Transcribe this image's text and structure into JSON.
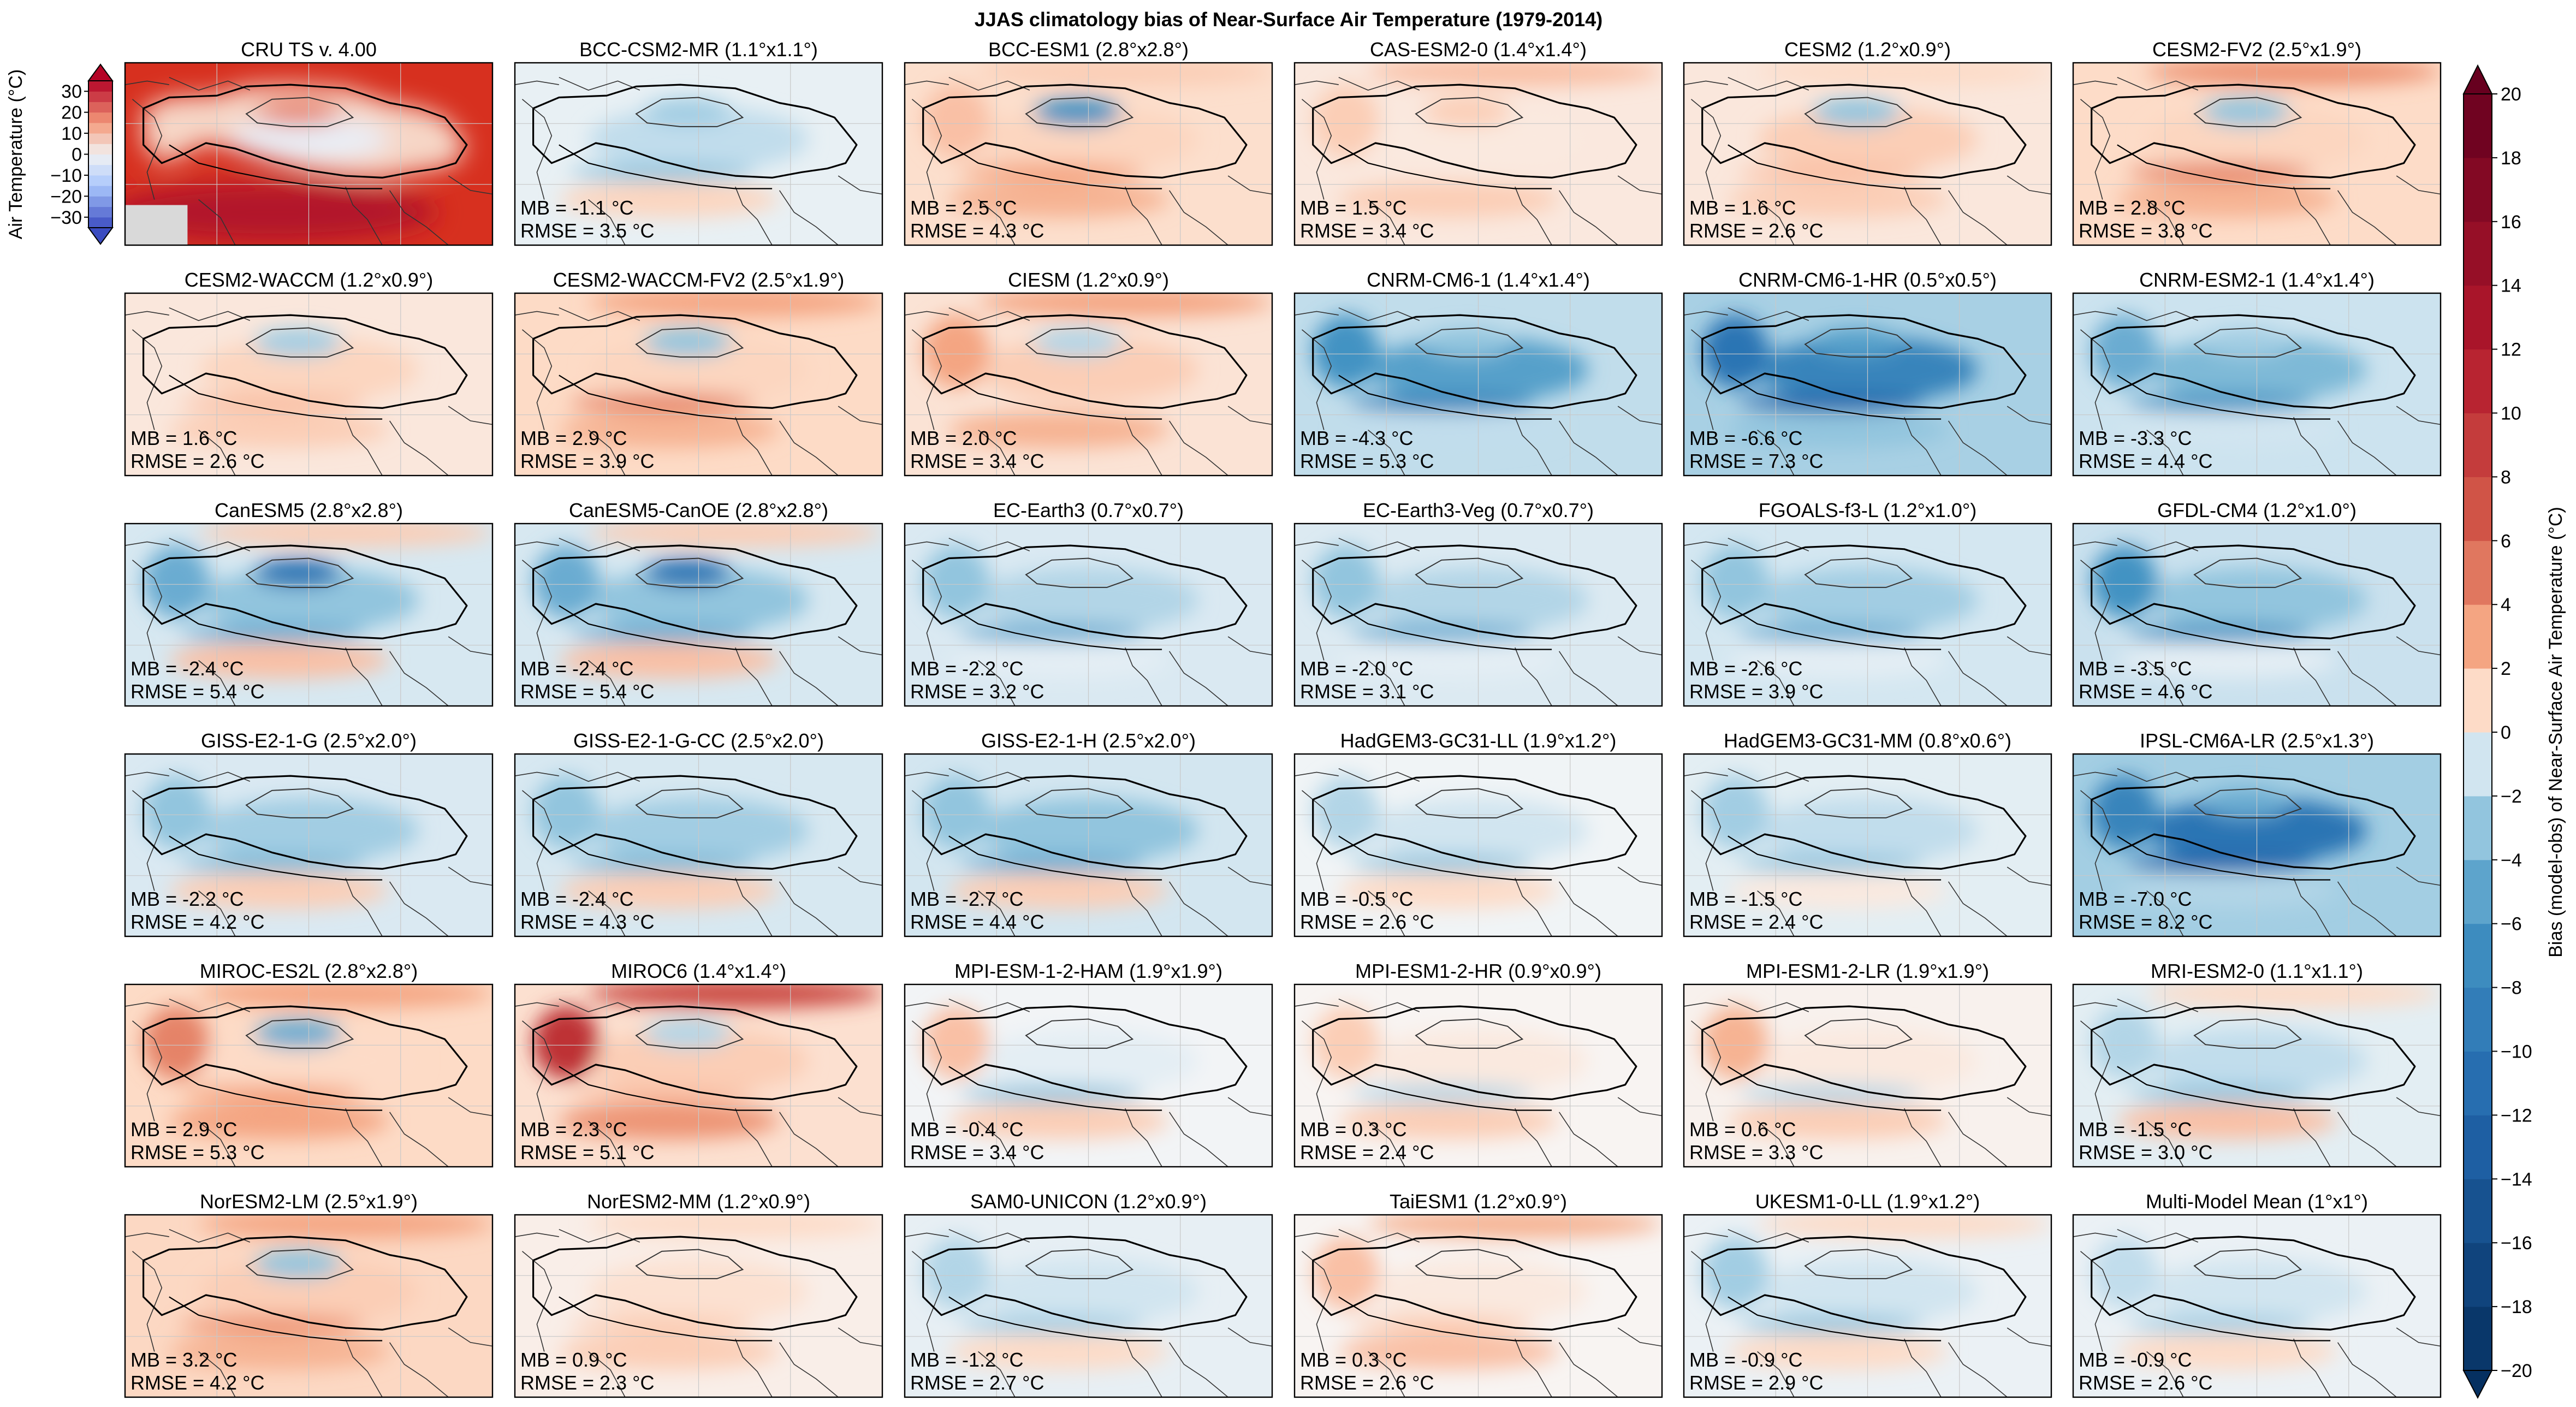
{
  "chart_data": {
    "type": "heatmap",
    "title": "JJAS climatology bias of Near-Surface Air Temperature (1979-2014)",
    "panel_columns": 6,
    "colors": {
      "warm_strong": "#b2182b",
      "warm_mid": "#ef8a62",
      "warm_light": "#fddbc7",
      "neutral": "#f7f7f7",
      "cool_light": "#d1e5f0",
      "cool_mid": "#67a9cf",
      "cool_strong": "#2166ac",
      "border": "#000000",
      "grid": "#c8c8c8",
      "no_data": "#d9d9d9"
    },
    "reference_colorbar": {
      "label": "Air Temperature (°C)",
      "ticks": [
        "30",
        "20",
        "10",
        "0",
        "−10",
        "−20",
        "−30"
      ],
      "range": [
        -35,
        35
      ]
    },
    "bias_colorbar": {
      "label": "Bias (model-obs) of Near-Surface Air Temperature (°C)",
      "ticks": [
        "20",
        "18",
        "16",
        "14",
        "12",
        "10",
        "8",
        "6",
        "4",
        "2",
        "0",
        "−2",
        "−4",
        "−6",
        "−8",
        "−10",
        "−12",
        "−14",
        "−16",
        "−18",
        "−20"
      ],
      "range": [
        -20,
        20
      ]
    },
    "panels": [
      {
        "title": "CRU TS v. 4.00",
        "reference": true
      },
      {
        "title": "BCC-CSM2-MR (1.1°x1.1°)",
        "mb": -1.1,
        "rmse": 3.5,
        "mb_label": "MB = -1.1 °C",
        "rmse_label": "RMSE = 3.5 °C"
      },
      {
        "title": "BCC-ESM1 (2.8°x2.8°)",
        "mb": 2.5,
        "rmse": 4.3,
        "mb_label": "MB = 2.5 °C",
        "rmse_label": "RMSE = 4.3 °C"
      },
      {
        "title": "CAS-ESM2-0 (1.4°x1.4°)",
        "mb": 1.5,
        "rmse": 3.4,
        "mb_label": "MB = 1.5 °C",
        "rmse_label": "RMSE = 3.4 °C"
      },
      {
        "title": "CESM2 (1.2°x0.9°)",
        "mb": 1.6,
        "rmse": 2.6,
        "mb_label": "MB = 1.6 °C",
        "rmse_label": "RMSE = 2.6 °C"
      },
      {
        "title": "CESM2-FV2 (2.5°x1.9°)",
        "mb": 2.8,
        "rmse": 3.8,
        "mb_label": "MB = 2.8 °C",
        "rmse_label": "RMSE = 3.8 °C"
      },
      {
        "title": "CESM2-WACCM (1.2°x0.9°)",
        "mb": 1.6,
        "rmse": 2.6,
        "mb_label": "MB = 1.6 °C",
        "rmse_label": "RMSE = 2.6 °C"
      },
      {
        "title": "CESM2-WACCM-FV2 (2.5°x1.9°)",
        "mb": 2.9,
        "rmse": 3.9,
        "mb_label": "MB = 2.9 °C",
        "rmse_label": "RMSE = 3.9 °C"
      },
      {
        "title": "CIESM (1.2°x0.9°)",
        "mb": 2.0,
        "rmse": 3.4,
        "mb_label": "MB = 2.0 °C",
        "rmse_label": "RMSE = 3.4 °C"
      },
      {
        "title": "CNRM-CM6-1 (1.4°x1.4°)",
        "mb": -4.3,
        "rmse": 5.3,
        "mb_label": "MB = -4.3 °C",
        "rmse_label": "RMSE = 5.3 °C"
      },
      {
        "title": "CNRM-CM6-1-HR (0.5°x0.5°)",
        "mb": -6.6,
        "rmse": 7.3,
        "mb_label": "MB = -6.6 °C",
        "rmse_label": "RMSE = 7.3 °C"
      },
      {
        "title": "CNRM-ESM2-1 (1.4°x1.4°)",
        "mb": -3.3,
        "rmse": 4.4,
        "mb_label": "MB = -3.3 °C",
        "rmse_label": "RMSE = 4.4 °C"
      },
      {
        "title": "CanESM5 (2.8°x2.8°)",
        "mb": -2.4,
        "rmse": 5.4,
        "mb_label": "MB = -2.4 °C",
        "rmse_label": "RMSE = 5.4 °C"
      },
      {
        "title": "CanESM5-CanOE (2.8°x2.8°)",
        "mb": -2.4,
        "rmse": 5.4,
        "mb_label": "MB = -2.4 °C",
        "rmse_label": "RMSE = 5.4 °C"
      },
      {
        "title": "EC-Earth3 (0.7°x0.7°)",
        "mb": -2.2,
        "rmse": 3.2,
        "mb_label": "MB = -2.2 °C",
        "rmse_label": "RMSE = 3.2 °C"
      },
      {
        "title": "EC-Earth3-Veg (0.7°x0.7°)",
        "mb": -2.0,
        "rmse": 3.1,
        "mb_label": "MB = -2.0 °C",
        "rmse_label": "RMSE = 3.1 °C"
      },
      {
        "title": "FGOALS-f3-L (1.2°x1.0°)",
        "mb": -2.6,
        "rmse": 3.9,
        "mb_label": "MB = -2.6 °C",
        "rmse_label": "RMSE = 3.9 °C"
      },
      {
        "title": "GFDL-CM4 (1.2°x1.0°)",
        "mb": -3.5,
        "rmse": 4.6,
        "mb_label": "MB = -3.5 °C",
        "rmse_label": "RMSE = 4.6 °C"
      },
      {
        "title": "GISS-E2-1-G (2.5°x2.0°)",
        "mb": -2.2,
        "rmse": 4.2,
        "mb_label": "MB = -2.2 °C",
        "rmse_label": "RMSE = 4.2 °C"
      },
      {
        "title": "GISS-E2-1-G-CC (2.5°x2.0°)",
        "mb": -2.4,
        "rmse": 4.3,
        "mb_label": "MB = -2.4 °C",
        "rmse_label": "RMSE = 4.3 °C"
      },
      {
        "title": "GISS-E2-1-H (2.5°x2.0°)",
        "mb": -2.7,
        "rmse": 4.4,
        "mb_label": "MB = -2.7 °C",
        "rmse_label": "RMSE = 4.4 °C"
      },
      {
        "title": "HadGEM3-GC31-LL (1.9°x1.2°)",
        "mb": -0.5,
        "rmse": 2.6,
        "mb_label": "MB = -0.5 °C",
        "rmse_label": "RMSE = 2.6 °C"
      },
      {
        "title": "HadGEM3-GC31-MM (0.8°x0.6°)",
        "mb": -1.5,
        "rmse": 2.4,
        "mb_label": "MB = -1.5 °C",
        "rmse_label": "RMSE = 2.4 °C"
      },
      {
        "title": "IPSL-CM6A-LR (2.5°x1.3°)",
        "mb": -7.0,
        "rmse": 8.2,
        "mb_label": "MB = -7.0 °C",
        "rmse_label": "RMSE = 8.2 °C"
      },
      {
        "title": "MIROC-ES2L (2.8°x2.8°)",
        "mb": 2.9,
        "rmse": 5.3,
        "mb_label": "MB = 2.9 °C",
        "rmse_label": "RMSE = 5.3 °C"
      },
      {
        "title": "MIROC6 (1.4°x1.4°)",
        "mb": 2.3,
        "rmse": 5.1,
        "mb_label": "MB = 2.3 °C",
        "rmse_label": "RMSE = 5.1 °C"
      },
      {
        "title": "MPI-ESM-1-2-HAM (1.9°x1.9°)",
        "mb": -0.4,
        "rmse": 3.4,
        "mb_label": "MB = -0.4 °C",
        "rmse_label": "RMSE = 3.4 °C"
      },
      {
        "title": "MPI-ESM1-2-HR (0.9°x0.9°)",
        "mb": 0.3,
        "rmse": 2.4,
        "mb_label": "MB = 0.3 °C",
        "rmse_label": "RMSE = 2.4 °C"
      },
      {
        "title": "MPI-ESM1-2-LR (1.9°x1.9°)",
        "mb": 0.6,
        "rmse": 3.3,
        "mb_label": "MB = 0.6 °C",
        "rmse_label": "RMSE = 3.3 °C"
      },
      {
        "title": "MRI-ESM2-0 (1.1°x1.1°)",
        "mb": -1.5,
        "rmse": 3.0,
        "mb_label": "MB = -1.5 °C",
        "rmse_label": "RMSE = 3.0 °C"
      },
      {
        "title": "NorESM2-LM (2.5°x1.9°)",
        "mb": 3.2,
        "rmse": 4.2,
        "mb_label": "MB = 3.2 °C",
        "rmse_label": "RMSE = 4.2 °C"
      },
      {
        "title": "NorESM2-MM (1.2°x0.9°)",
        "mb": 0.9,
        "rmse": 2.3,
        "mb_label": "MB = 0.9 °C",
        "rmse_label": "RMSE = 2.3 °C"
      },
      {
        "title": "SAM0-UNICON (1.2°x0.9°)",
        "mb": -1.2,
        "rmse": 2.7,
        "mb_label": "MB = -1.2 °C",
        "rmse_label": "RMSE = 2.7 °C"
      },
      {
        "title": "TaiESM1 (1.2°x0.9°)",
        "mb": 0.3,
        "rmse": 2.6,
        "mb_label": "MB = 0.3 °C",
        "rmse_label": "RMSE = 2.6 °C"
      },
      {
        "title": "UKESM1-0-LL (1.9°x1.2°)",
        "mb": -0.9,
        "rmse": 2.9,
        "mb_label": "MB = -0.9 °C",
        "rmse_label": "RMSE = 2.9 °C"
      },
      {
        "title": "Multi-Model Mean (1°x1°)",
        "mb": -0.9,
        "rmse": 2.6,
        "mb_label": "MB = -0.9 °C",
        "rmse_label": "RMSE = 2.6 °C"
      }
    ]
  }
}
